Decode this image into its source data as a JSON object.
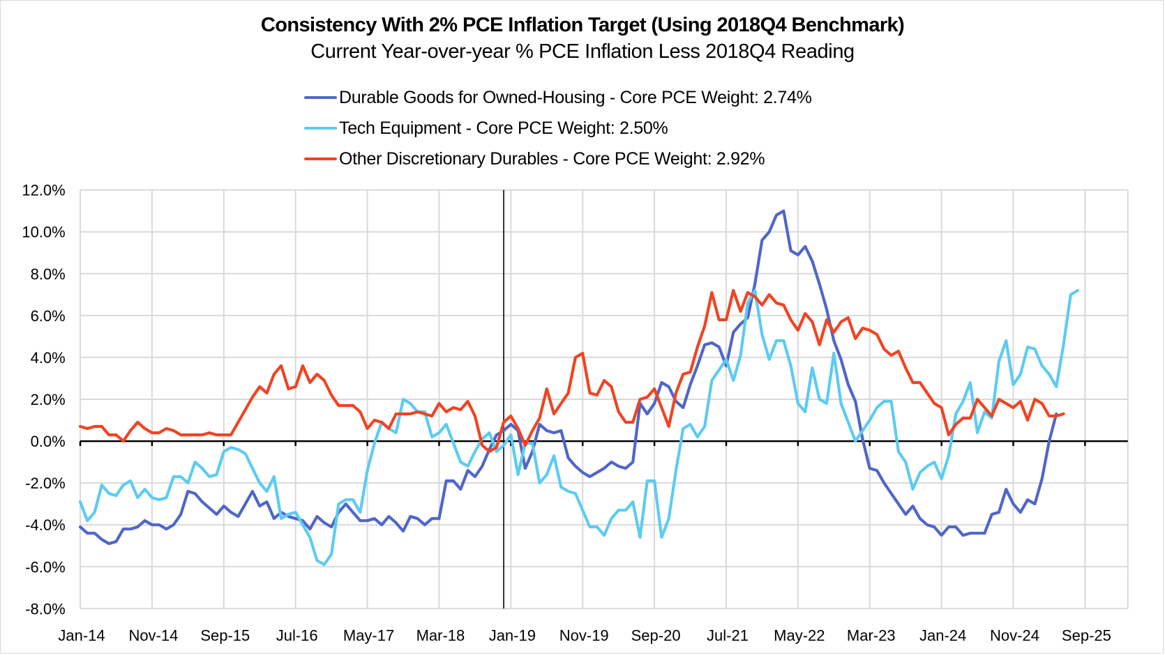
{
  "chart_data": {
    "type": "line",
    "title": "Consistency With 2% PCE Inflation Target (Using 2018Q4 Benchmark)",
    "subtitle": "Current Year-over-year % PCE Inflation Less 2018Q4 Reading",
    "xlabel": "",
    "ylabel": "",
    "ylim": [
      -8,
      12
    ],
    "y_ticks": [
      12,
      10,
      8,
      6,
      4,
      2,
      0,
      -2,
      -4,
      -6,
      -8
    ],
    "y_tick_labels": [
      "12.0%",
      "10.0%",
      "8.0%",
      "6.0%",
      "4.0%",
      "2.0%",
      "0.0%",
      "-2.0%",
      "-4.0%",
      "-6.0%",
      "-8.0%"
    ],
    "x_start": "Jan-14",
    "x_end_axis": "Feb-26",
    "x_tick_labels": [
      "Jan-14",
      "Nov-14",
      "Sep-15",
      "Jul-16",
      "May-17",
      "Mar-18",
      "Jan-19",
      "Nov-19",
      "Sep-20",
      "Jul-21",
      "May-22",
      "Mar-23",
      "Jan-24",
      "Nov-24",
      "Sep-25"
    ],
    "x_tick_interval_months": 10,
    "vertical_marker": "Dec-18",
    "grid": true,
    "legend_position": "top-center",
    "frequency": "monthly",
    "series": [
      {
        "name": "Durable Goods for Owned-Housing - Core PCE Weight: 2.74%",
        "color": "#4f66c9",
        "values": [
          -4.1,
          -4.4,
          -4.4,
          -4.7,
          -4.9,
          -4.8,
          -4.2,
          -4.2,
          -4.1,
          -3.8,
          -4.0,
          -4.0,
          -4.2,
          -4.0,
          -3.5,
          -2.4,
          -2.5,
          -2.9,
          -3.2,
          -3.5,
          -3.1,
          -3.4,
          -3.6,
          -3.0,
          -2.4,
          -3.1,
          -2.9,
          -3.7,
          -3.4,
          -3.6,
          -3.7,
          -3.8,
          -4.2,
          -3.6,
          -3.9,
          -4.1,
          -3.4,
          -3.0,
          -3.4,
          -3.8,
          -3.8,
          -3.7,
          -4.0,
          -3.6,
          -3.9,
          -4.3,
          -3.6,
          -3.7,
          -4.0,
          -3.7,
          -3.7,
          -1.9,
          -1.9,
          -2.3,
          -1.4,
          -1.7,
          -1.2,
          -0.4,
          0.3,
          0.5,
          0.8,
          0.5,
          -1.3,
          -0.5,
          0.8,
          0.5,
          0.4,
          0.5,
          -0.8,
          -1.2,
          -1.5,
          -1.7,
          -1.5,
          -1.3,
          -1.0,
          -1.2,
          -1.3,
          -1.0,
          1.8,
          1.3,
          1.8,
          2.8,
          2.6,
          1.9,
          1.6,
          2.7,
          3.6,
          4.6,
          4.7,
          4.5,
          3.6,
          5.2,
          5.6,
          5.9,
          7.5,
          9.6,
          10.0,
          10.8,
          11.0,
          9.1,
          8.9,
          9.3,
          8.6,
          7.5,
          6.3,
          4.8,
          3.9,
          2.7,
          1.9,
          0.1,
          -1.3,
          -1.4,
          -2.0,
          -2.5,
          -3.0,
          -3.5,
          -3.1,
          -3.7,
          -4.0,
          -4.1,
          -4.5,
          -4.1,
          -4.1,
          -4.5,
          -4.4,
          -4.4,
          -4.4,
          -3.5,
          -3.4,
          -2.3,
          -3.0,
          -3.4,
          -2.8,
          -3.0,
          -1.8,
          0.0,
          1.3
        ],
        "note": "final value ~1.3% (Jun-25)"
      },
      {
        "name": "Tech Equipment - Core PCE Weight: 2.50%",
        "color": "#5dcbf2",
        "values": [
          -2.9,
          -3.8,
          -3.4,
          -2.1,
          -2.5,
          -2.6,
          -2.1,
          -1.9,
          -2.7,
          -2.3,
          -2.7,
          -2.8,
          -2.7,
          -1.7,
          -1.7,
          -2.0,
          -1.0,
          -1.3,
          -1.7,
          -1.6,
          -0.5,
          -0.3,
          -0.4,
          -0.6,
          -1.3,
          -2.0,
          -2.4,
          -1.7,
          -3.7,
          -3.5,
          -3.4,
          -4.0,
          -4.6,
          -5.7,
          -5.9,
          -5.4,
          -3.0,
          -2.8,
          -2.8,
          -3.4,
          -1.4,
          -0.1,
          0.9,
          0.6,
          0.4,
          2.0,
          1.8,
          1.4,
          1.4,
          0.2,
          0.4,
          0.8,
          -0.1,
          -1.0,
          -1.2,
          -0.5,
          0.1,
          0.4,
          -0.5,
          -0.2,
          0.3,
          -1.6,
          -0.1,
          -0.1,
          -2.0,
          -1.6,
          -0.7,
          -2.2,
          -2.4,
          -2.5,
          -3.3,
          -4.1,
          -4.1,
          -4.5,
          -3.7,
          -3.3,
          -3.3,
          -2.9,
          -4.6,
          -1.9,
          -1.9,
          -4.6,
          -3.7,
          -1.4,
          0.6,
          0.8,
          0.2,
          0.7,
          2.9,
          3.4,
          3.9,
          2.9,
          4.1,
          6.6,
          7.2,
          5.1,
          3.9,
          4.8,
          4.8,
          3.6,
          1.8,
          1.4,
          3.5,
          2.0,
          1.8,
          4.2,
          1.8,
          0.9,
          0.0,
          0.5,
          1.0,
          1.6,
          1.9,
          1.9,
          -0.5,
          -1.0,
          -2.3,
          -1.5,
          -1.2,
          -1.0,
          -1.8,
          -0.7,
          1.3,
          1.9,
          2.8,
          0.4,
          1.4,
          1.1,
          3.8,
          4.8,
          2.7,
          3.2,
          4.5,
          4.4,
          3.6,
          3.2,
          2.6,
          4.6,
          7.0,
          7.2
        ]
      },
      {
        "name": "Other Discretionary Durables - Core PCE Weight: 2.92%",
        "color": "#f04423",
        "values": [
          0.7,
          0.6,
          0.7,
          0.7,
          0.3,
          0.3,
          0.0,
          0.5,
          0.9,
          0.6,
          0.4,
          0.4,
          0.6,
          0.5,
          0.3,
          0.3,
          0.3,
          0.3,
          0.4,
          0.3,
          0.3,
          0.3,
          0.9,
          1.5,
          2.1,
          2.6,
          2.3,
          3.2,
          3.6,
          2.5,
          2.6,
          3.6,
          2.8,
          3.2,
          2.9,
          2.2,
          1.7,
          1.7,
          1.7,
          1.4,
          0.6,
          1.0,
          0.9,
          0.6,
          1.3,
          1.3,
          1.3,
          1.4,
          1.3,
          1.2,
          1.8,
          1.4,
          1.6,
          1.5,
          1.9,
          1.2,
          -0.2,
          -0.5,
          -0.3,
          0.9,
          1.2,
          0.6,
          -0.2,
          0.5,
          1.1,
          2.5,
          1.3,
          1.8,
          2.3,
          4.0,
          4.2,
          2.3,
          2.2,
          2.9,
          2.6,
          1.4,
          0.9,
          0.9,
          2.0,
          2.1,
          2.5,
          1.6,
          0.7,
          2.3,
          3.2,
          3.3,
          4.5,
          5.5,
          7.1,
          5.8,
          5.8,
          7.2,
          6.2,
          7.1,
          6.9,
          6.5,
          7.0,
          6.6,
          6.5,
          5.8,
          5.3,
          6.1,
          5.7,
          4.6,
          5.8,
          5.2,
          5.7,
          5.9,
          4.9,
          5.4,
          5.3,
          5.1,
          4.4,
          4.1,
          4.3,
          3.5,
          2.8,
          2.8,
          2.3,
          1.8,
          1.6,
          0.3,
          0.8,
          1.1,
          1.1,
          2.0,
          1.6,
          1.2,
          2.0,
          1.8,
          1.6,
          1.9,
          1.0,
          2.0,
          1.8,
          1.2,
          1.2,
          1.3
        ]
      }
    ]
  }
}
